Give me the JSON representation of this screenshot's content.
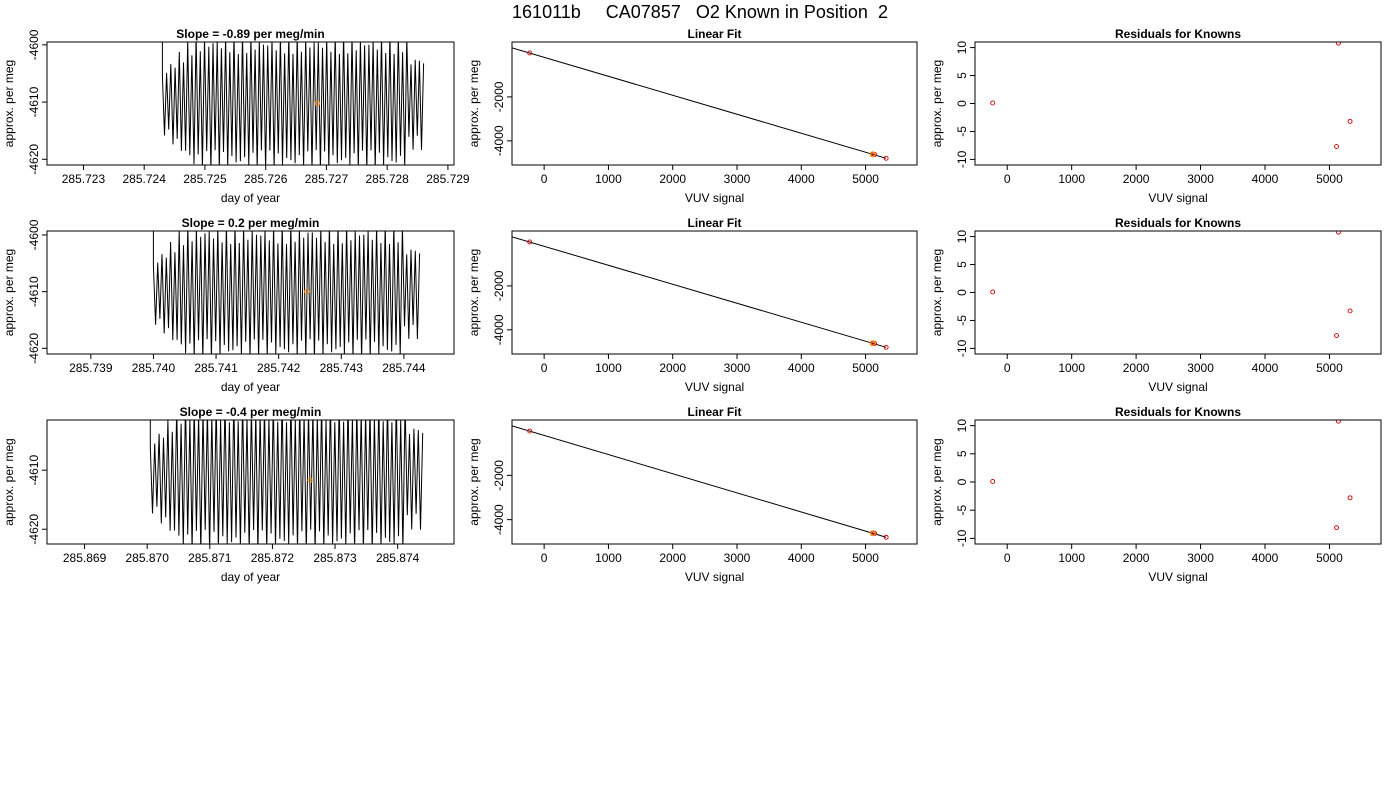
{
  "title": "161011b     CA07857   O2 Known in Position  2",
  "colors": {
    "trace": "#000000",
    "known_marker": "#ff8c00",
    "fit_marker": "#cc0000",
    "fit_line": "#000000"
  },
  "chart_data": [
    {
      "type": "line",
      "title": "Slope =  -0.89  per meg/min",
      "xlabel": "day of year",
      "ylabel": "approx. per meg",
      "xlim": [
        285.7224,
        285.7291
      ],
      "ylim": [
        -4621.0,
        -4599.5
      ],
      "xticks": [
        285.723,
        285.724,
        285.725,
        285.726,
        285.727,
        285.728,
        285.729
      ],
      "xtick_labels": [
        "285.723",
        "285.724",
        "285.725",
        "285.726",
        "285.727",
        "285.728",
        "285.729"
      ],
      "yticks": [
        -4620,
        -4610,
        -4600
      ],
      "ytick_labels": [
        "-4620",
        "-4610",
        "-4600"
      ],
      "signal": {
        "x_start": 285.7243,
        "x_end": 285.7286,
        "n_cycles": 62,
        "high": -4598,
        "low": -4622,
        "taper_frac": 0.12
      },
      "marker": {
        "x": 285.72685,
        "y": -4610.2
      }
    },
    {
      "type": "scatter",
      "title": "Linear Fit",
      "xlabel": "VUV signal",
      "ylabel": "approx. per meg",
      "xlim": [
        -500,
        5800
      ],
      "ylim": [
        -5100,
        500
      ],
      "xticks": [
        0,
        1000,
        2000,
        3000,
        4000,
        5000
      ],
      "xtick_labels": [
        "0",
        "1000",
        "2000",
        "3000",
        "4000",
        "5000"
      ],
      "yticks": [
        -4000,
        -2000
      ],
      "ytick_labels": [
        "-4000",
        "-2000"
      ],
      "points": [
        {
          "x": -225,
          "y": 0
        },
        {
          "x": 5110,
          "y": -4610
        },
        {
          "x": 5140,
          "y": -4620
        },
        {
          "x": 5320,
          "y": -4795
        }
      ],
      "known_point": {
        "x": 5110,
        "y": -4610
      },
      "fit_line": {
        "x1": -500,
        "y1": 235,
        "x2": 5320,
        "y2": -4795
      }
    },
    {
      "type": "scatter",
      "title": "Residuals for Knowns",
      "xlabel": "VUV signal",
      "ylabel": "approx. per meg",
      "xlim": [
        -500,
        5800
      ],
      "ylim": [
        -11,
        11
      ],
      "xticks": [
        0,
        1000,
        2000,
        3000,
        4000,
        5000
      ],
      "xtick_labels": [
        "0",
        "1000",
        "2000",
        "3000",
        "4000",
        "5000"
      ],
      "yticks": [
        -10,
        -5,
        0,
        5,
        10
      ],
      "ytick_labels": [
        "-10",
        "-5",
        "0",
        "5",
        "10"
      ],
      "points": [
        {
          "x": -225,
          "y": 0.1
        },
        {
          "x": 5140,
          "y": 10.8
        },
        {
          "x": 5320,
          "y": -3.2
        },
        {
          "x": 5110,
          "y": -7.7
        }
      ]
    },
    {
      "type": "line",
      "title": "Slope =  0.2  per meg/min",
      "xlabel": "day of year",
      "ylabel": "approx. per meg",
      "xlim": [
        285.7383,
        285.7448
      ],
      "ylim": [
        -4621.0,
        -4599.3
      ],
      "xticks": [
        285.739,
        285.74,
        285.741,
        285.742,
        285.743,
        285.744
      ],
      "xtick_labels": [
        "285.739",
        "285.740",
        "285.741",
        "285.742",
        "285.743",
        "285.744"
      ],
      "yticks": [
        -4620,
        -4610,
        -4600
      ],
      "ytick_labels": [
        "-4620",
        "-4610",
        "-4600"
      ],
      "signal": {
        "x_start": 285.74,
        "x_end": 285.74425,
        "n_cycles": 62,
        "high": -4598,
        "low": -4622,
        "taper_frac": 0.12
      },
      "marker": {
        "x": 285.74245,
        "y": -4610.0
      }
    },
    {
      "type": "scatter",
      "title": "Linear Fit",
      "xlabel": "VUV signal",
      "ylabel": "approx. per meg",
      "xlim": [
        -500,
        5800
      ],
      "ylim": [
        -5100,
        500
      ],
      "xticks": [
        0,
        1000,
        2000,
        3000,
        4000,
        5000
      ],
      "xtick_labels": [
        "0",
        "1000",
        "2000",
        "3000",
        "4000",
        "5000"
      ],
      "yticks": [
        -4000,
        -2000
      ],
      "ytick_labels": [
        "-4000",
        "-2000"
      ],
      "points": [
        {
          "x": -225,
          "y": 0
        },
        {
          "x": 5110,
          "y": -4610
        },
        {
          "x": 5140,
          "y": -4620
        },
        {
          "x": 5320,
          "y": -4795
        }
      ],
      "known_point": {
        "x": 5110,
        "y": -4610
      },
      "fit_line": {
        "x1": -500,
        "y1": 235,
        "x2": 5320,
        "y2": -4795
      }
    },
    {
      "type": "scatter",
      "title": "Residuals for Knowns",
      "xlabel": "VUV signal",
      "ylabel": "approx. per meg",
      "xlim": [
        -500,
        5800
      ],
      "ylim": [
        -11,
        11
      ],
      "xticks": [
        0,
        1000,
        2000,
        3000,
        4000,
        5000
      ],
      "xtick_labels": [
        "0",
        "1000",
        "2000",
        "3000",
        "4000",
        "5000"
      ],
      "yticks": [
        -10,
        -5,
        0,
        5,
        10
      ],
      "ytick_labels": [
        "-10",
        "-5",
        "0",
        "5",
        "10"
      ],
      "points": [
        {
          "x": -225,
          "y": 0.1
        },
        {
          "x": 5140,
          "y": 10.8
        },
        {
          "x": 5320,
          "y": -3.3
        },
        {
          "x": 5110,
          "y": -7.7
        }
      ]
    },
    {
      "type": "line",
      "title": "Slope =  -0.4  per meg/min",
      "xlabel": "day of year",
      "ylabel": "approx. per meg",
      "xlim": [
        285.8684,
        285.8749
      ],
      "ylim": [
        -4622.5,
        -4601.5
      ],
      "xticks": [
        285.869,
        285.87,
        285.871,
        285.872,
        285.873,
        285.874
      ],
      "xtick_labels": [
        "285.869",
        "285.870",
        "285.871",
        "285.872",
        "285.873",
        "285.874"
      ],
      "yticks": [
        -4620,
        -4610
      ],
      "ytick_labels": [
        "-4620",
        "-4610"
      ],
      "signal": {
        "x_start": 285.87005,
        "x_end": 285.8744,
        "n_cycles": 62,
        "high": -4598,
        "low": -4624,
        "taper_frac": 0.12
      },
      "marker": {
        "x": 285.8726,
        "y": -4611.7
      }
    },
    {
      "type": "scatter",
      "title": "Linear Fit",
      "xlabel": "VUV signal",
      "ylabel": "approx. per meg",
      "xlim": [
        -500,
        5800
      ],
      "ylim": [
        -5100,
        500
      ],
      "xticks": [
        0,
        1000,
        2000,
        3000,
        4000,
        5000
      ],
      "xtick_labels": [
        "0",
        "1000",
        "2000",
        "3000",
        "4000",
        "5000"
      ],
      "yticks": [
        -4000,
        -2000
      ],
      "ytick_labels": [
        "-4000",
        "-2000"
      ],
      "points": [
        {
          "x": -225,
          "y": 0
        },
        {
          "x": 5110,
          "y": -4612
        },
        {
          "x": 5140,
          "y": -4620
        },
        {
          "x": 5320,
          "y": -4795
        }
      ],
      "known_point": {
        "x": 5110,
        "y": -4612
      },
      "fit_line": {
        "x1": -500,
        "y1": 235,
        "x2": 5320,
        "y2": -4795
      }
    },
    {
      "type": "scatter",
      "title": "Residuals for Knowns",
      "xlabel": "VUV signal",
      "ylabel": "approx. per meg",
      "xlim": [
        -500,
        5800
      ],
      "ylim": [
        -11,
        11
      ],
      "xticks": [
        0,
        1000,
        2000,
        3000,
        4000,
        5000
      ],
      "xtick_labels": [
        "0",
        "1000",
        "2000",
        "3000",
        "4000",
        "5000"
      ],
      "yticks": [
        -10,
        -5,
        0,
        5,
        10
      ],
      "ytick_labels": [
        "-10",
        "-5",
        "0",
        "5",
        "10"
      ],
      "points": [
        {
          "x": -225,
          "y": 0.1
        },
        {
          "x": 5140,
          "y": 10.8
        },
        {
          "x": 5320,
          "y": -2.8
        },
        {
          "x": 5110,
          "y": -8.1
        }
      ]
    }
  ]
}
